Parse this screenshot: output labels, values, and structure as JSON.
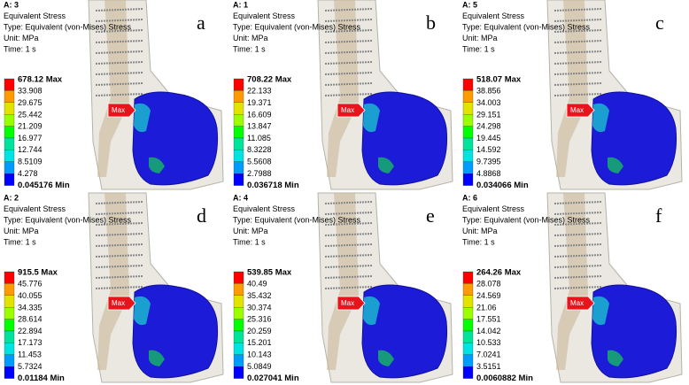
{
  "panels": [
    {
      "letter": "a",
      "header": [
        "A: 3",
        "Equivalent Stress",
        "Type: Equivalent (von-Mises) Stress",
        "Unit: MPa",
        "Time: 1 s"
      ],
      "legend": [
        "678.12 Max",
        "33.908",
        "29.675",
        "25.442",
        "21.209",
        "16.977",
        "12.744",
        "8.5109",
        "4.278",
        "0.045176 Min"
      ],
      "tag": "Max"
    },
    {
      "letter": "b",
      "header": [
        "A: 1",
        "Equivalent Stress",
        "Type: Equivalent (von-Mises) Stress",
        "Unit: MPa",
        "Time: 1 s"
      ],
      "legend": [
        "708.22 Max",
        "22.133",
        "19.371",
        "16.609",
        "13.847",
        "11.085",
        "8.3228",
        "5.5608",
        "2.7988",
        "0.036718 Min"
      ],
      "tag": "Max"
    },
    {
      "letter": "c",
      "header": [
        "A: 5",
        "Equivalent Stress",
        "Type: Equivalent (von-Mises) Stress",
        "Unit: MPa",
        "Time: 1 s"
      ],
      "legend": [
        "518.07 Max",
        "38.856",
        "34.003",
        "29.151",
        "24.298",
        "19.445",
        "14.592",
        "9.7395",
        "4.8868",
        "0.034066 Min"
      ],
      "tag": "Max"
    },
    {
      "letter": "d",
      "header": [
        "A: 2",
        "Equivalent Stress",
        "Type: Equivalent (von-Mises) Stress",
        "Unit: MPa",
        "Time: 1 s"
      ],
      "legend": [
        "915.5 Max",
        "45.776",
        "40.055",
        "34.335",
        "28.614",
        "22.894",
        "17.173",
        "11.453",
        "5.7324",
        "0.01184 Min"
      ],
      "tag": "Max"
    },
    {
      "letter": "e",
      "header": [
        "A: 4",
        "Equivalent Stress",
        "Type: Equivalent (von-Mises) Stress",
        "Unit: MPa",
        "Time: 1 s"
      ],
      "legend": [
        "539.85 Max",
        "40.49",
        "35.432",
        "30.374",
        "25.316",
        "20.259",
        "15.201",
        "10.143",
        "5.0849",
        "0.027041 Min"
      ],
      "tag": "Max"
    },
    {
      "letter": "f",
      "header": [
        "A: 6",
        "Equivalent Stress",
        "Type: Equivalent (von-Mises) Stress",
        "Unit: MPa",
        "Time: 1 s"
      ],
      "legend": [
        "264.26 Max",
        "28.078",
        "24.569",
        "21.06",
        "17.551",
        "14.042",
        "10.533",
        "7.0241",
        "3.5151",
        "0.0060882 Min"
      ],
      "tag": "Max"
    }
  ]
}
